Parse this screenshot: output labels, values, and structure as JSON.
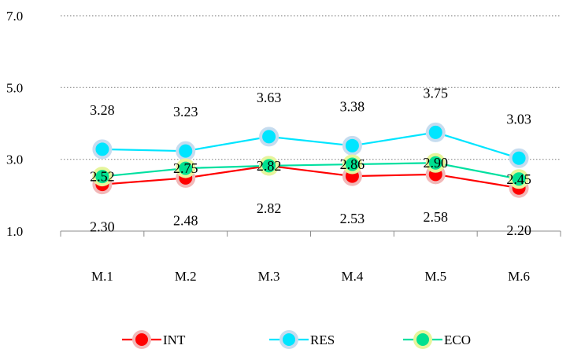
{
  "chart_data": {
    "type": "line",
    "categories": [
      "M.1",
      "M.2",
      "M.3",
      "M.4",
      "M.5",
      "M.6"
    ],
    "y_ticks": [
      "1.0",
      "3.0",
      "5.0",
      "7.0"
    ],
    "ylim": [
      1.0,
      7.0
    ],
    "grid": "horizontal-dotted",
    "legend_position": "bottom",
    "series": [
      {
        "name": "INT",
        "values": [
          2.3,
          2.48,
          2.82,
          2.53,
          2.58,
          2.2
        ],
        "labels": [
          "2.30",
          "2.48",
          "2.82",
          "2.53",
          "2.58",
          "2.20"
        ],
        "line_color": "#ff0000",
        "marker_fill": "#ff0000",
        "marker_ring": "#f2b8b8"
      },
      {
        "name": "RES",
        "values": [
          3.28,
          3.23,
          3.63,
          3.38,
          3.75,
          3.03
        ],
        "labels": [
          "3.28",
          "3.23",
          "3.63",
          "3.38",
          "3.75",
          "3.03"
        ],
        "line_color": "#00e5ff",
        "marker_fill": "#00e5ff",
        "marker_ring": "#c6dcef"
      },
      {
        "name": "ECO",
        "values": [
          2.52,
          2.75,
          2.82,
          2.86,
          2.9,
          2.45
        ],
        "labels": [
          "2.52",
          "2.75",
          "2.82",
          "2.86",
          "2.90",
          "2.45"
        ],
        "line_color": "#00e0a0",
        "marker_fill": "#00e090",
        "marker_ring": "#e6f59c"
      }
    ]
  }
}
